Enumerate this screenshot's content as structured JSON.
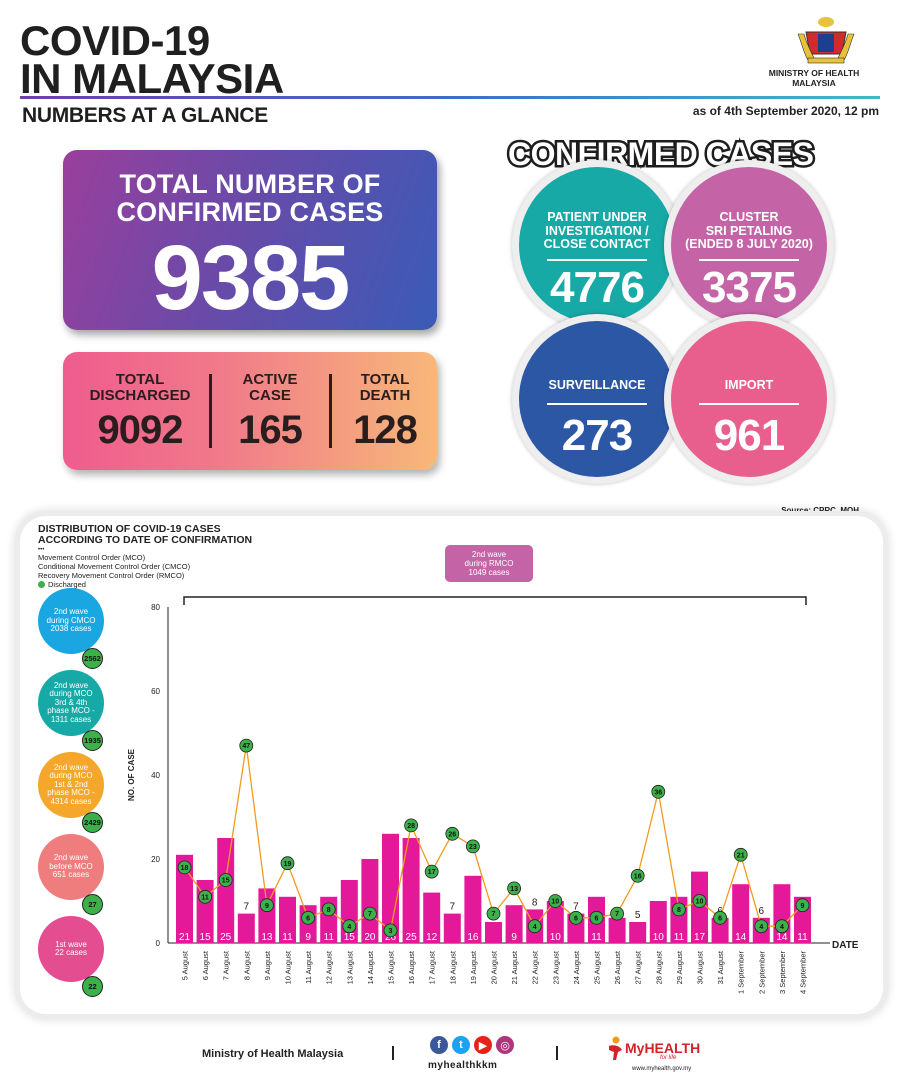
{
  "header": {
    "title_line1": "COVID-19",
    "title_line2": "IN MALAYSIA",
    "subtitle": "NUMBERS AT A GLANCE",
    "as_of": "as of 4th September 2020, 12 pm",
    "ministry": "MINISTRY OF HEALTH\nMALAYSIA"
  },
  "total": {
    "label": "TOTAL NUMBER OF\nCONFIRMED CASES",
    "value": "9385"
  },
  "stats": [
    {
      "label": "TOTAL\nDISCHARGED",
      "value": "9092"
    },
    {
      "label": "ACTIVE\nCASE",
      "value": "165"
    },
    {
      "label": "TOTAL\nDEATH",
      "value": "128"
    }
  ],
  "confirmed": {
    "title": "CONFIRMED CASES",
    "circles": [
      {
        "label": "PATIENT UNDER\nINVESTIGATION /\nCLOSE CONTACT",
        "value": "4776",
        "color": "#17a9a6"
      },
      {
        "label": "CLUSTER\nSRI PETALING\n(ENDED 8 JULY 2020)",
        "value": "3375",
        "color": "#c463a6"
      },
      {
        "label": "SURVEILLANCE",
        "value": "273",
        "color": "#2c57a5"
      },
      {
        "label": "IMPORT",
        "value": "961",
        "color": "#e85e8c"
      }
    ]
  },
  "source": "Source: CPRC, MOH",
  "chart_title": "DISTRIBUTION OF COVID-19 CASES\nACCORDING TO DATE OF CONFIRMATION",
  "legend": {
    "mco": "Movement Control Order (MCO)",
    "cmco": "Conditional Movement Control Order (CMCO)",
    "rmco": "Recovery Movement Control Order (RMCO)",
    "discharged": "Discharged"
  },
  "waves": [
    {
      "label": "2nd wave\nduring CMCO\n2038 cases",
      "discharged": "2562",
      "color": "#1aa6e0"
    },
    {
      "label": "2nd wave\nduring MCO\n3rd & 4th\nphase MCO -\n1311 cases",
      "discharged": "1935",
      "color": "#17a9a6"
    },
    {
      "label": "2nd wave\nduring MCO\n1st & 2nd\nphase MCO -\n4314 cases",
      "discharged": "2429",
      "color": "#f4a72a"
    },
    {
      "label": "2nd wave\nbefore MCO\n651 cases",
      "discharged": "27",
      "color": "#ef7d7d"
    },
    {
      "label": "1st wave\n22 cases",
      "discharged": "22",
      "color": "#e44d8f"
    }
  ],
  "rmco_box": "2nd wave\nduring RMCO\n1049 cases",
  "chart_data": {
    "type": "bar",
    "title": "DISTRIBUTION OF COVID-19 CASES ACCORDING TO DATE OF CONFIRMATION",
    "xlabel": "DATE",
    "ylabel": "NO. OF CASE",
    "ylim": [
      0,
      80
    ],
    "yticks": [
      0,
      20,
      40,
      60,
      80
    ],
    "grid": false,
    "legend_position": "top-left",
    "categories": [
      "5 August",
      "6 August",
      "7 August",
      "8 August",
      "9 August",
      "10 August",
      "11 August",
      "12 August",
      "13 August",
      "14 August",
      "15 August",
      "16 August",
      "17 August",
      "18 August",
      "19 August",
      "20 August",
      "21 August",
      "22 August",
      "23 August",
      "24 August",
      "25 August",
      "26 August",
      "27 August",
      "28 August",
      "29 August",
      "30 August",
      "31 August",
      "1 September",
      "2 September",
      "3 September",
      "4 September"
    ],
    "series": [
      {
        "name": "Cases",
        "type": "bar",
        "color": "#e4199a",
        "values": [
          21,
          15,
          25,
          7,
          13,
          11,
          9,
          11,
          15,
          20,
          26,
          25,
          12,
          7,
          16,
          5,
          9,
          8,
          10,
          7,
          11,
          6,
          5,
          10,
          11,
          17,
          6,
          14,
          6,
          14,
          11
        ]
      },
      {
        "name": "Discharged",
        "type": "line",
        "color": "#f39a1e",
        "marker_color": "#3cb04a",
        "values": [
          18,
          11,
          15,
          47,
          9,
          19,
          6,
          8,
          4,
          7,
          3,
          28,
          17,
          26,
          23,
          7,
          13,
          4,
          10,
          6,
          6,
          7,
          16,
          36,
          8,
          10,
          6,
          21,
          4,
          4,
          9
        ]
      }
    ]
  },
  "footer": {
    "ministry": "Ministry of Health Malaysia",
    "handle": "myhealthkkm",
    "brand": "MyHEALTH",
    "tagline": "for life",
    "url": "www.myhealth.gov.my"
  }
}
